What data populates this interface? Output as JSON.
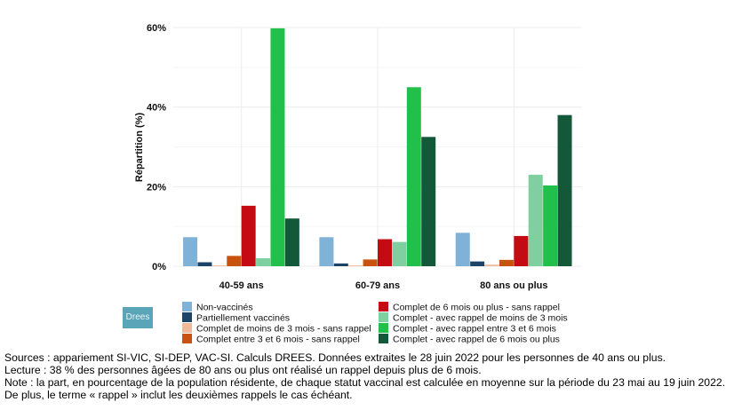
{
  "chart_data": {
    "type": "bar",
    "ylabel": "Répartition (%)",
    "ylim": [
      0,
      60
    ],
    "yticks": [
      0,
      20,
      40,
      60
    ],
    "ytick_labels": [
      "0%",
      "20%",
      "40%",
      "60%"
    ],
    "grid": true,
    "legend_position": "bottom",
    "categories": [
      "40-59 ans",
      "60-79 ans",
      "80 ans ou plus"
    ],
    "series": [
      {
        "name": "Non-vaccinés",
        "color": "#7fb2d6",
        "values": [
          7.3,
          7.3,
          8.4
        ]
      },
      {
        "name": "Partiellement vaccinés",
        "color": "#1c4466",
        "values": [
          1.0,
          0.7,
          1.2
        ]
      },
      {
        "name": "Complet de moins de 3 mois - sans rappel",
        "color": "#f2b89a",
        "values": [
          0.2,
          0.2,
          0.4
        ]
      },
      {
        "name": "Complet entre 3 et 6 mois - sans rappel",
        "color": "#c8530f",
        "values": [
          2.6,
          1.7,
          1.6
        ]
      },
      {
        "name": "Complet de 6 mois ou plus - sans rappel",
        "color": "#c40a12",
        "values": [
          15.2,
          6.8,
          7.6
        ]
      },
      {
        "name": "Complet - avec rappel de moins de 3 mois",
        "color": "#7fcfa0",
        "values": [
          2.0,
          6.1,
          23.0
        ]
      },
      {
        "name": "Complet - avec rappel entre 3 et 6 mois",
        "color": "#21c04a",
        "values": [
          59.8,
          45.0,
          20.3
        ]
      },
      {
        "name": "Complet - avec rappel de 6 mois ou plus",
        "color": "#14583a",
        "values": [
          12.0,
          32.5,
          38.0
        ]
      }
    ]
  },
  "logo_text": "Drees",
  "notes": {
    "sources": "Sources : appariement SI-VIC, SI-DEP, VAC-SI. Calculs DREES. Données extraites le 28 juin 2022 pour les personnes de 40 ans ou plus.",
    "lecture": "Lecture : 38 % des personnes âgées de 80 ans ou plus ont réalisé un rappel depuis plus de 6 mois.",
    "note": "Note : la part, en pourcentage de la population résidente, de chaque statut vaccinal est calculée en moyenne sur la période du 23 mai au 19 juin 2022. De plus, le terme « rappel » inclut les deuxièmes rappels le cas échéant."
  }
}
